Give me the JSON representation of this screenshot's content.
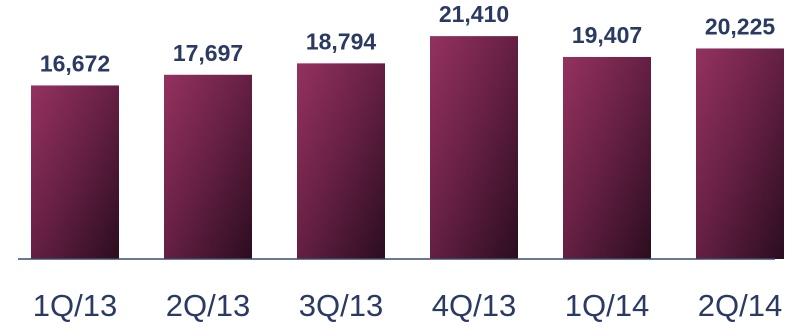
{
  "chart_data": {
    "type": "bar",
    "categories": [
      "1Q/13",
      "2Q/13",
      "3Q/13",
      "4Q/13",
      "1Q/14",
      "2Q/14"
    ],
    "values": [
      16672,
      17697,
      18794,
      21410,
      19407,
      20225
    ],
    "value_labels": [
      "16,672",
      "17,697",
      "18,794",
      "21,410",
      "19,407",
      "20,225"
    ],
    "title": "",
    "xlabel": "",
    "ylabel": "",
    "grid": false,
    "legend": "none",
    "colors": {
      "bar_light": "#94325f",
      "bar_dark": "#2b0d1f",
      "text": "#2a3a63",
      "axis": "#3b4a6b"
    }
  }
}
